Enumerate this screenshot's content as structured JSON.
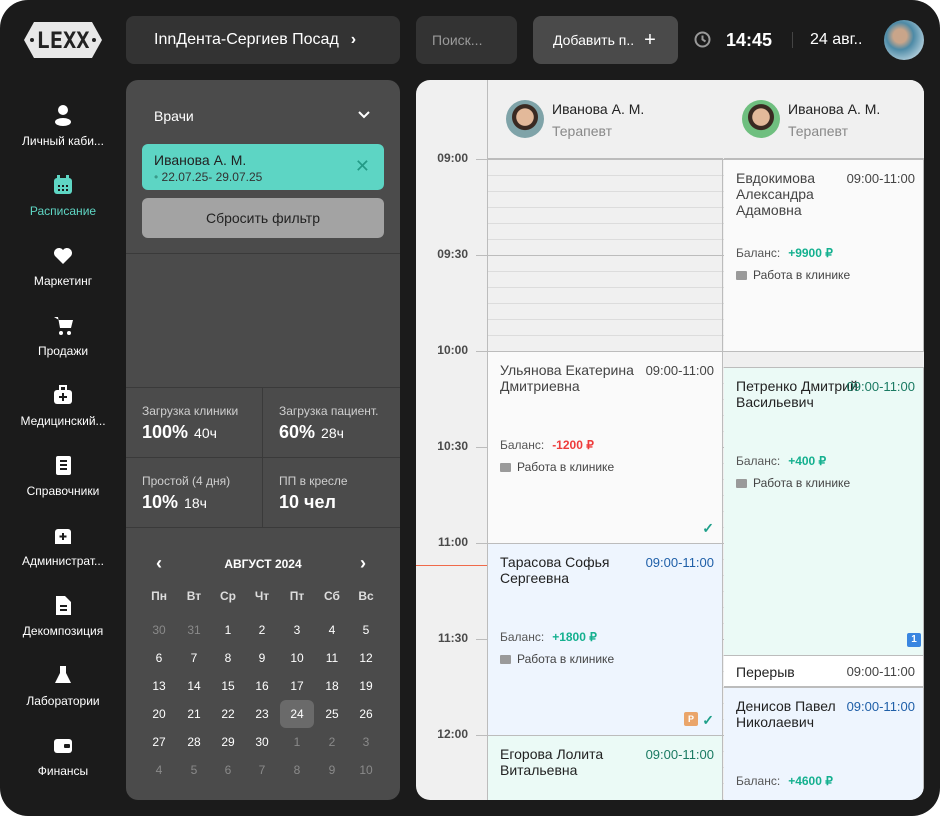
{
  "logo": "LEXX",
  "header": {
    "clinic": "InnДента-Сергиев Посад",
    "search_placeholder": "Поиск...",
    "add_button": "Добавить п..",
    "time": "14:45",
    "date": "24 авг.."
  },
  "sidebar": {
    "items": [
      {
        "label": "Личный каби...",
        "icon": "user-icon"
      },
      {
        "label": "Расписание",
        "icon": "calendar-icon",
        "active": true
      },
      {
        "label": "Маркетинг",
        "icon": "heart-icon"
      },
      {
        "label": "Продажи",
        "icon": "cart-icon"
      },
      {
        "label": "Медицинский...",
        "icon": "medkit-icon"
      },
      {
        "label": "Справочники",
        "icon": "book-icon"
      },
      {
        "label": "Администрат...",
        "icon": "admin-icon"
      },
      {
        "label": "Декомпозиция",
        "icon": "document-icon"
      },
      {
        "label": "Лаборатории",
        "icon": "flask-icon"
      },
      {
        "label": "Финансы",
        "icon": "wallet-icon"
      }
    ]
  },
  "filter": {
    "label": "Врачи",
    "chip_name": "Иванова А. М.",
    "chip_dates": "22.07.25- 29.07.25",
    "reset": "Сбросить фильтр"
  },
  "stats": [
    {
      "label": "Загрузка клиники",
      "value": "100%",
      "sub": "40ч"
    },
    {
      "label": "Загрузка пациент.",
      "value": "60%",
      "sub": "28ч"
    },
    {
      "label": "Простой (4 дня)",
      "value": "10%",
      "sub": "18ч"
    },
    {
      "label": "ПП в кресле",
      "value": "10 чел",
      "sub": ""
    }
  ],
  "calendar": {
    "title": "АВГУСТ 2024",
    "weekdays": [
      "Пн",
      "Вт",
      "Ср",
      "Чт",
      "Пт",
      "Сб",
      "Вс"
    ],
    "selected": "24",
    "weeks": [
      [
        "30",
        "31",
        "1",
        "2",
        "3",
        "4",
        "5"
      ],
      [
        "6",
        "7",
        "8",
        "9",
        "10",
        "11",
        "12"
      ],
      [
        "13",
        "14",
        "15",
        "16",
        "17",
        "18",
        "19"
      ],
      [
        "20",
        "21",
        "22",
        "23",
        "24",
        "25",
        "26"
      ],
      [
        "27",
        "28",
        "29",
        "30",
        "1",
        "2",
        "3"
      ],
      [
        "4",
        "5",
        "6",
        "7",
        "8",
        "9",
        "10"
      ]
    ],
    "muted": [
      [
        1,
        1,
        0,
        0,
        0,
        0,
        0
      ],
      [
        0,
        0,
        0,
        0,
        0,
        0,
        0
      ],
      [
        0,
        0,
        0,
        0,
        0,
        0,
        0
      ],
      [
        0,
        0,
        0,
        0,
        0,
        0,
        0
      ],
      [
        0,
        0,
        0,
        0,
        1,
        1,
        1
      ],
      [
        1,
        1,
        1,
        1,
        1,
        1,
        1
      ]
    ]
  },
  "schedule": {
    "times": [
      "09:00",
      "09:30",
      "10:00",
      "10:30",
      "11:00",
      "11:30",
      "12:00"
    ],
    "now": "11:07",
    "colors": {
      "white": "#fafafa",
      "blue": "#eef5fe",
      "mint": "#ebfaf6",
      "green": "#14b08f",
      "red": "#ee3b3b",
      "time_blue": "#1f5fa8",
      "time_green": "#1a7a62"
    },
    "columns": [
      {
        "doctor": "Иванова А. М.",
        "role": "Терапевт",
        "avatar_bg": "#7fa3a8",
        "appointments": [
          {
            "name": "Ульянова Екатерина Дмитриевна",
            "time": "09:00-11:00",
            "start": "10:00",
            "end": "11:00",
            "bg": "white",
            "time_color": "#444",
            "balance_label": "Баланс:",
            "balance": "-1200 ₽",
            "balance_color": "red",
            "note": "Работа в клинике",
            "check": true
          },
          {
            "name": "Тарасова Софья Сергеевна",
            "time": "09:00-11:00",
            "start": "11:00",
            "end": "12:00",
            "bg": "blue",
            "time_color": "time_blue",
            "balance_label": "Баланс:",
            "balance": "+1800 ₽",
            "balance_color": "green",
            "note": "Работа в клинике",
            "check": true,
            "badge": "Р"
          },
          {
            "name": "Егорова Лолита Витальевна",
            "time": "09:00-11:00",
            "start": "12:00",
            "end": "12:30",
            "bg": "mint",
            "time_color": "time_green"
          }
        ]
      },
      {
        "doctor": "Иванова А. М.",
        "role": "Терапевт",
        "avatar_bg": "#6fbf7f",
        "appointments": [
          {
            "name": "Евдокимова Александра Адамовна",
            "time": "09:00-11:00",
            "start": "09:00",
            "end": "10:00",
            "bg": "white",
            "time_color": "#444",
            "balance_label": "Баланс:",
            "balance": "+9900 ₽",
            "balance_color": "green",
            "note": "Работа в клинике"
          },
          {
            "name": "Петренко Дмитрий Васильевич",
            "time": "09:00-11:00",
            "start": "10:05",
            "end": "11:35",
            "bg": "mint",
            "time_color": "time_green",
            "balance_label": "Баланс:",
            "balance": "+400 ₽",
            "balance_color": "green",
            "note": "Работа в клинике",
            "badge_num": "1"
          },
          {
            "name": "Перерыв",
            "time": "09:00-11:00",
            "start": "11:35",
            "end": "11:45",
            "bg": "break",
            "time_color": "#444"
          },
          {
            "name": "Денисов Павел Николаевич",
            "time": "09:00-11:00",
            "start": "11:45",
            "end": "12:30",
            "bg": "blue",
            "time_color": "time_blue",
            "balance_label": "Баланс:",
            "balance": "+4600 ₽",
            "balance_color": "green"
          }
        ]
      }
    ]
  }
}
